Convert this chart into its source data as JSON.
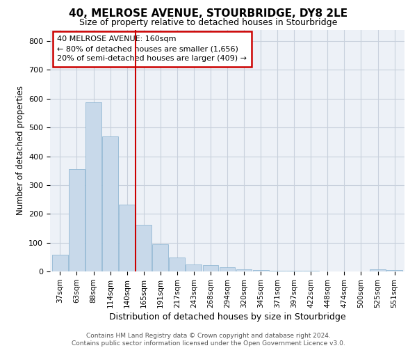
{
  "title": "40, MELROSE AVENUE, STOURBRIDGE, DY8 2LE",
  "subtitle": "Size of property relative to detached houses in Stourbridge",
  "xlabel": "Distribution of detached houses by size in Stourbridge",
  "ylabel": "Number of detached properties",
  "bar_labels": [
    "37sqm",
    "63sqm",
    "88sqm",
    "114sqm",
    "140sqm",
    "165sqm",
    "191sqm",
    "217sqm",
    "243sqm",
    "268sqm",
    "294sqm",
    "320sqm",
    "345sqm",
    "371sqm",
    "397sqm",
    "422sqm",
    "448sqm",
    "474sqm",
    "500sqm",
    "525sqm",
    "551sqm"
  ],
  "bar_values": [
    57,
    355,
    588,
    468,
    232,
    162,
    95,
    48,
    25,
    22,
    15,
    8,
    4,
    3,
    2,
    2,
    1,
    0,
    1,
    8,
    5
  ],
  "bar_color": "#c8d9ea",
  "bar_edge_color": "#93b8d4",
  "vline_pos": 5.0,
  "vline_color": "#cc0000",
  "ann_line1": "40 MELROSE AVENUE: 160sqm",
  "ann_line2": "← 80% of detached houses are smaller (1,656)",
  "ann_line3": "20% of semi-detached houses are larger (409) →",
  "ann_box_fc": "#ffffff",
  "ann_box_ec": "#cc0000",
  "grid_color": "#c8d0dc",
  "bg_color": "#edf1f7",
  "footer_line1": "Contains HM Land Registry data © Crown copyright and database right 2024.",
  "footer_line2": "Contains public sector information licensed under the Open Government Licence v3.0.",
  "ylim": [
    0,
    840
  ],
  "yticks": [
    0,
    100,
    200,
    300,
    400,
    500,
    600,
    700,
    800
  ]
}
